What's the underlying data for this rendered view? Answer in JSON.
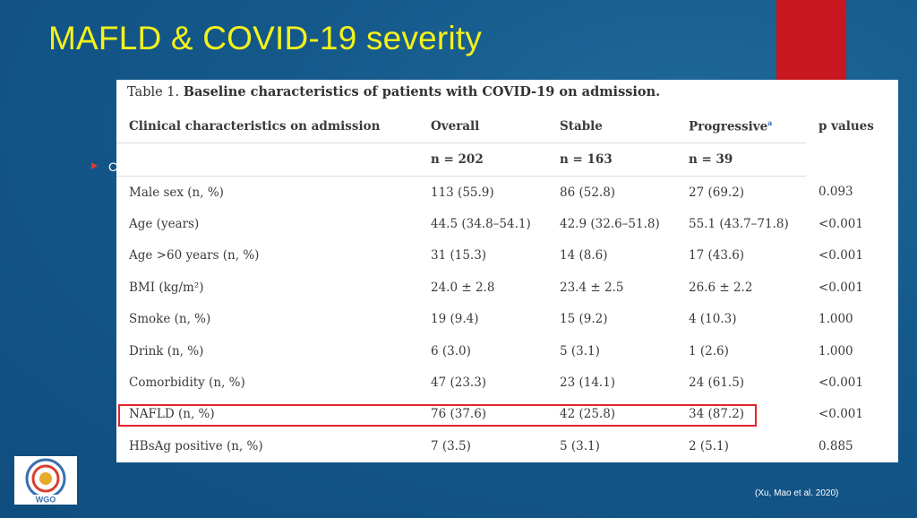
{
  "slide": {
    "title": "MAFLD & COVID-19 severity",
    "bullet_text": "C",
    "citation": "(Xu, Mao et al. 2020)",
    "colors": {
      "title": "#f4f21a",
      "accent_red": "#c8171e",
      "highlight_border": "#e2232b",
      "background": "#14588a"
    }
  },
  "logo": {
    "icon": "wgo-logo",
    "text": "WGO"
  },
  "table": {
    "caption_label": "Table 1.",
    "caption_text": "Baseline characteristics of patients with COVID-19 on admission.",
    "headers": {
      "characteristic": "Clinical characteristics on admission",
      "overall": "Overall",
      "stable": "Stable",
      "progressive": "Progressive",
      "progressive_sup": "a",
      "p": "p values",
      "overall_n": "n = 202",
      "stable_n": "n = 163",
      "progressive_n": "n = 39"
    },
    "rows": [
      {
        "label": "Male sex (n, %)",
        "overall": "113 (55.9)",
        "stable": "86 (52.8)",
        "progressive": "27 (69.2)",
        "p": "0.093"
      },
      {
        "label": "Age (years)",
        "overall": "44.5 (34.8–54.1)",
        "stable": "42.9 (32.6–51.8)",
        "progressive": "55.1 (43.7–71.8)",
        "p": "<0.001"
      },
      {
        "label": "Age >60 years (n, %)",
        "overall": "31 (15.3)",
        "stable": "14 (8.6)",
        "progressive": "17 (43.6)",
        "p": "<0.001"
      },
      {
        "label": "BMI (kg/m²)",
        "overall": "24.0 ± 2.8",
        "stable": "23.4 ± 2.5",
        "progressive": "26.6 ± 2.2",
        "p": "<0.001"
      },
      {
        "label": "Smoke (n, %)",
        "overall": "19 (9.4)",
        "stable": "15 (9.2)",
        "progressive": "4 (10.3)",
        "p": "1.000"
      },
      {
        "label": "Drink (n, %)",
        "overall": "6 (3.0)",
        "stable": "5 (3.1)",
        "progressive": "1 (2.6)",
        "p": "1.000"
      },
      {
        "label": "Comorbidity (n, %)",
        "overall": "47 (23.3)",
        "stable": "23 (14.1)",
        "progressive": "24 (61.5)",
        "p": "<0.001"
      },
      {
        "label": "NAFLD (n, %)",
        "overall": "76 (37.6)",
        "stable": "42 (25.8)",
        "progressive": "34 (87.2)",
        "p": "<0.001"
      },
      {
        "label": "HBsAg positive (n, %)",
        "overall": "7 (3.5)",
        "stable": "5 (3.1)",
        "progressive": "2 (5.1)",
        "p": "0.885"
      }
    ]
  }
}
